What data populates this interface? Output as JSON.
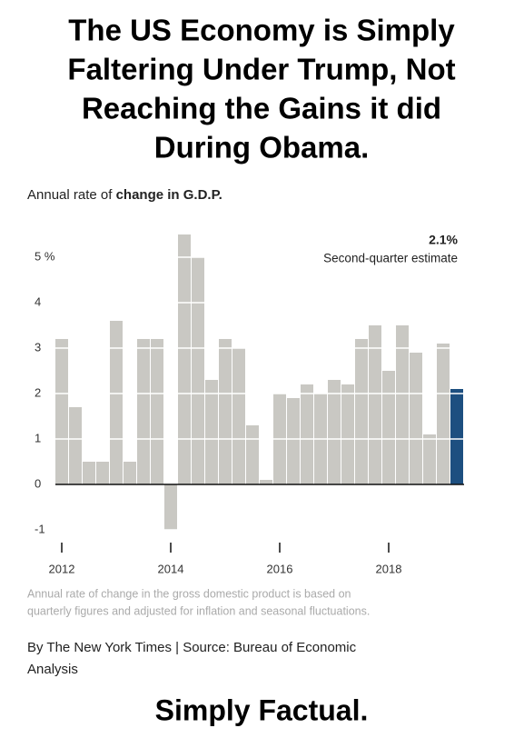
{
  "headline": [
    "The US Economy is Simply",
    "Faltering Under Trump, Not",
    "Reaching the Gains it did",
    "During Obama."
  ],
  "chart_data": {
    "type": "bar",
    "subtitle_plain": "Annual rate of",
    "subtitle_bold": "change in G.D.P.",
    "annotation_value": "2.1%",
    "annotation_text": "Second-quarter estimate",
    "x_labels": [
      {
        "index": 0,
        "label": "2012"
      },
      {
        "index": 8,
        "label": "2014"
      },
      {
        "index": 16,
        "label": "2016"
      },
      {
        "index": 24,
        "label": "2018"
      }
    ],
    "values": [
      3.2,
      1.7,
      0.5,
      0.5,
      3.6,
      0.5,
      3.2,
      3.2,
      -1.0,
      5.5,
      5.0,
      2.3,
      3.2,
      3.0,
      1.3,
      0.1,
      2.0,
      1.9,
      2.2,
      2.0,
      2.3,
      2.2,
      3.2,
      3.5,
      2.5,
      3.5,
      2.9,
      1.1,
      3.1,
      2.1
    ],
    "colors": [
      "#c9c8c3",
      "#c9c8c3",
      "#c9c8c3",
      "#c9c8c3",
      "#c9c8c3",
      "#c9c8c3",
      "#c9c8c3",
      "#c9c8c3",
      "#c9c8c3",
      "#c9c8c3",
      "#c9c8c3",
      "#c9c8c3",
      "#c9c8c3",
      "#c9c8c3",
      "#c9c8c3",
      "#c9c8c3",
      "#c9c8c3",
      "#c9c8c3",
      "#c9c8c3",
      "#c9c8c3",
      "#c9c8c3",
      "#c9c8c3",
      "#c9c8c3",
      "#c9c8c3",
      "#c9c8c3",
      "#c9c8c3",
      "#c9c8c3",
      "#c9c8c3",
      "#c9c8c3",
      "#1d4f80"
    ],
    "ylim": [
      -1.1,
      5.5
    ],
    "yticks": [
      -1,
      0,
      1,
      2,
      3,
      4,
      {
        "value": 5,
        "label": "5 %"
      }
    ],
    "grid": true,
    "note": [
      "Annual rate of change in the gross domestic product is based on",
      "quarterly figures and adjusted for inflation and seasonal fluctuations."
    ],
    "source": [
      "By The New York Times | Source: Bureau of Economic",
      "Analysis"
    ]
  },
  "footer": "Simply Factual."
}
